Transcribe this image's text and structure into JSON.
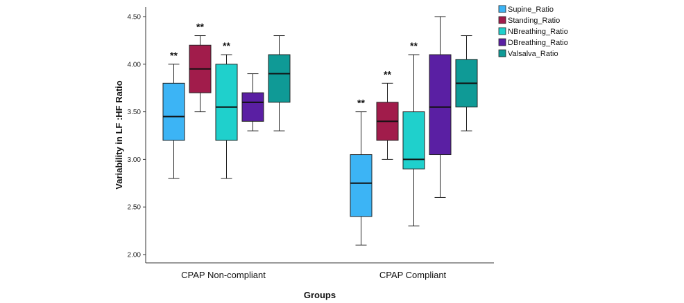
{
  "chart_data": {
    "type": "boxplot",
    "title": "",
    "xlabel": "Groups",
    "ylabel": "Variability in LF :HF Ratio",
    "ylim": [
      2.0,
      4.6
    ],
    "yticks": [
      "2.00",
      "2.50",
      "3.00",
      "3.50",
      "4.00",
      "4.50"
    ],
    "ytick_values": [
      2.0,
      2.5,
      3.0,
      3.5,
      4.0,
      4.5
    ],
    "categories": [
      "CPAP Non-compliant",
      "CPAP Compliant"
    ],
    "legend_position": "top-right",
    "series": [
      {
        "name": "Supine_Ratio",
        "color": "#3cb4f5",
        "boxes": [
          {
            "min": 2.8,
            "q1": 3.2,
            "median": 3.45,
            "q3": 3.8,
            "max": 4.0,
            "annotation": "**"
          },
          {
            "min": 2.1,
            "q1": 2.4,
            "median": 2.75,
            "q3": 3.05,
            "max": 3.5,
            "annotation": "**"
          }
        ]
      },
      {
        "name": "Standing_Ratio",
        "color": "#a11c4b",
        "boxes": [
          {
            "min": 3.5,
            "q1": 3.7,
            "median": 3.95,
            "q3": 4.2,
            "max": 4.3,
            "annotation": "**"
          },
          {
            "min": 3.0,
            "q1": 3.2,
            "median": 3.4,
            "q3": 3.6,
            "max": 3.8,
            "annotation": "**"
          }
        ]
      },
      {
        "name": "NBreathing_Ratio",
        "color": "#1fd0cc",
        "boxes": [
          {
            "min": 2.8,
            "q1": 3.2,
            "median": 3.55,
            "q3": 4.0,
            "max": 4.1,
            "annotation": "**"
          },
          {
            "min": 2.3,
            "q1": 2.9,
            "median": 3.0,
            "q3": 3.5,
            "max": 4.1,
            "annotation": "**"
          }
        ]
      },
      {
        "name": "DBreathing_Ratio",
        "color": "#5a1fa3",
        "boxes": [
          {
            "min": 3.3,
            "q1": 3.4,
            "median": 3.6,
            "q3": 3.7,
            "max": 3.9,
            "annotation": ""
          },
          {
            "min": 2.6,
            "q1": 3.05,
            "median": 3.55,
            "q3": 4.1,
            "max": 4.5,
            "annotation": ""
          }
        ]
      },
      {
        "name": "Valsalva_Ratio",
        "color": "#0f9a96",
        "boxes": [
          {
            "min": 3.3,
            "q1": 3.6,
            "median": 3.9,
            "q3": 4.1,
            "max": 4.3,
            "annotation": ""
          },
          {
            "min": 3.3,
            "q1": 3.55,
            "median": 3.8,
            "q3": 4.05,
            "max": 4.3,
            "annotation": ""
          }
        ]
      }
    ]
  }
}
